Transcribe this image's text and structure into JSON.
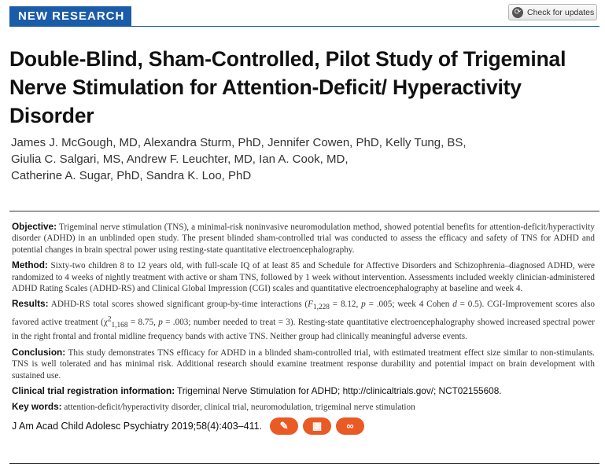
{
  "header": {
    "badge": "NEW RESEARCH",
    "check_updates": "Check for updates"
  },
  "title": "Double-Blind, Sham-Controlled, Pilot Study of Trigeminal Nerve Stimulation for Attention-Deficit/ Hyperactivity Disorder",
  "authors": [
    "James J. McGough, MD, Alexandra Sturm, PhD, Jennifer Cowen, PhD, Kelly Tung, BS,",
    "Giulia C. Salgari, MS, Andrew F. Leuchter, MD, Ian A. Cook, MD,",
    "Catherine A. Sugar, PhD, Sandra K. Loo, PhD"
  ],
  "abstract": {
    "objective": {
      "label": "Objective:",
      "text": "Trigeminal nerve stimulation (TNS), a minimal-risk noninvasive neuromodulation method, showed potential benefits for attention-deficit/hyperactivity disorder (ADHD) in an unblinded open study. The present blinded sham-controlled trial was conducted to assess the efficacy and safety of TNS for ADHD and potential changes in brain spectral power using resting-state quantitative electroencephalography."
    },
    "method": {
      "label": "Method:",
      "text": "Sixty-two children 8 to 12 years old, with full-scale IQ of at least 85 and Schedule for Affective Disorders and Schizophrenia–diagnosed ADHD, were randomized to 4 weeks of nightly treatment with active or sham TNS, followed by 1 week without intervention. Assessments included weekly clinician-administered ADHD Rating Scales (ADHD-RS) and Clinical Global Impression (CGI) scales and quantitative electroencephalography at baseline and week 4."
    },
    "results": {
      "label": "Results:",
      "t1": "ADHD-RS total scores showed significant group-by-time interactions (",
      "f": "F",
      "fsub": "1,228",
      "t2": " = 8.12, ",
      "p": "p",
      "t3": " = .005; week 4 Cohen ",
      "d": "d",
      "t4": " = 0.5). CGI-Improvement scores also favored active treatment (",
      "chi": "χ",
      "chisup": "2",
      "chisub": "1,168",
      "t5": " = 8.75, ",
      "t6": " = .003; number needed to treat = 3). Resting-state quantitative electroencephalography showed increased spectral power in the right frontal and frontal midline frequency bands with active TNS. Neither group had clinically meaningful adverse events."
    },
    "conclusion": {
      "label": "Conclusion:",
      "text": "This study demonstrates TNS efficacy for ADHD in a blinded sham-controlled trial, with estimated treatment effect size similar to non-stimulants. TNS is well tolerated and has minimal risk. Additional research should examine treatment response durability and potential impact on brain development with sustained use."
    },
    "registration": {
      "label": "Clinical trial registration information:",
      "text": "Trigeminal Nerve Stimulation for ADHD; http://clinicaltrials.gov/; NCT02155608."
    },
    "keywords": {
      "label": "Key words:",
      "text": "attention-deficit/hyperactivity disorder, clinical trial, neuromodulation, trigeminal nerve stimulation"
    },
    "citation": "J Am Acad Child Adolesc Psychiatry 2019;58(4):403–411.",
    "icons": [
      "pen-icon",
      "cme-icon",
      "link-icon"
    ],
    "icon_color": "#e95a24"
  }
}
